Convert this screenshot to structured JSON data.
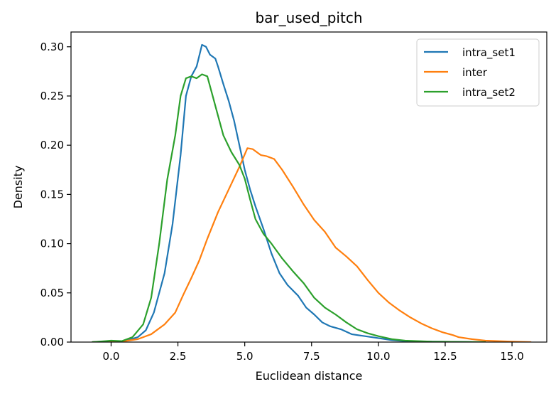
{
  "chart_data": {
    "type": "line",
    "title": "bar_used_pitch",
    "xlabel": "Euclidean distance",
    "ylabel": "Density",
    "xlim": [
      -1.5,
      16.3
    ],
    "ylim": [
      0,
      0.315
    ],
    "xticks": [
      0.0,
      2.5,
      5.0,
      7.5,
      10.0,
      12.5,
      15.0
    ],
    "xtick_labels": [
      "0.0",
      "2.5",
      "5.0",
      "7.5",
      "10.0",
      "12.5",
      "15.0"
    ],
    "yticks": [
      0.0,
      0.05,
      0.1,
      0.15,
      0.2,
      0.25,
      0.3
    ],
    "ytick_labels": [
      "0.00",
      "0.05",
      "0.10",
      "0.15",
      "0.20",
      "0.25",
      "0.30"
    ],
    "grid": false,
    "legend_position": "top-right",
    "series": [
      {
        "name": "intra_set1",
        "color": "#1f77b4",
        "points": [
          [
            -0.7,
            0.0
          ],
          [
            0.0,
            0.001
          ],
          [
            0.5,
            0.001
          ],
          [
            1.0,
            0.005
          ],
          [
            1.3,
            0.012
          ],
          [
            1.6,
            0.03
          ],
          [
            2.0,
            0.07
          ],
          [
            2.3,
            0.12
          ],
          [
            2.6,
            0.19
          ],
          [
            2.8,
            0.25
          ],
          [
            3.0,
            0.27
          ],
          [
            3.2,
            0.28
          ],
          [
            3.4,
            0.302
          ],
          [
            3.55,
            0.3
          ],
          [
            3.7,
            0.292
          ],
          [
            3.9,
            0.288
          ],
          [
            4.0,
            0.28
          ],
          [
            4.2,
            0.262
          ],
          [
            4.4,
            0.245
          ],
          [
            4.6,
            0.225
          ],
          [
            4.8,
            0.2
          ],
          [
            5.0,
            0.175
          ],
          [
            5.2,
            0.155
          ],
          [
            5.4,
            0.138
          ],
          [
            5.7,
            0.115
          ],
          [
            6.0,
            0.09
          ],
          [
            6.3,
            0.07
          ],
          [
            6.6,
            0.058
          ],
          [
            7.0,
            0.047
          ],
          [
            7.3,
            0.035
          ],
          [
            7.6,
            0.028
          ],
          [
            7.9,
            0.02
          ],
          [
            8.2,
            0.016
          ],
          [
            8.6,
            0.013
          ],
          [
            9.0,
            0.008
          ],
          [
            9.5,
            0.006
          ],
          [
            10.0,
            0.004
          ],
          [
            10.5,
            0.002
          ],
          [
            11.0,
            0.001
          ],
          [
            12.0,
            0.0005
          ],
          [
            13.0,
            0.0002
          ],
          [
            13.5,
            0.0
          ]
        ]
      },
      {
        "name": "inter",
        "color": "#ff7f0e",
        "points": [
          [
            -0.7,
            0.0
          ],
          [
            0.0,
            0.0
          ],
          [
            0.5,
            0.001
          ],
          [
            1.0,
            0.003
          ],
          [
            1.5,
            0.008
          ],
          [
            2.0,
            0.018
          ],
          [
            2.4,
            0.03
          ],
          [
            2.7,
            0.048
          ],
          [
            3.0,
            0.065
          ],
          [
            3.3,
            0.083
          ],
          [
            3.6,
            0.105
          ],
          [
            4.0,
            0.132
          ],
          [
            4.4,
            0.155
          ],
          [
            4.8,
            0.178
          ],
          [
            5.1,
            0.197
          ],
          [
            5.3,
            0.196
          ],
          [
            5.6,
            0.19
          ],
          [
            5.8,
            0.189
          ],
          [
            6.1,
            0.186
          ],
          [
            6.4,
            0.175
          ],
          [
            6.8,
            0.158
          ],
          [
            7.2,
            0.14
          ],
          [
            7.6,
            0.124
          ],
          [
            8.0,
            0.112
          ],
          [
            8.4,
            0.096
          ],
          [
            8.8,
            0.087
          ],
          [
            9.2,
            0.077
          ],
          [
            9.6,
            0.063
          ],
          [
            10.0,
            0.05
          ],
          [
            10.4,
            0.04
          ],
          [
            10.8,
            0.032
          ],
          [
            11.2,
            0.025
          ],
          [
            11.6,
            0.019
          ],
          [
            12.0,
            0.014
          ],
          [
            12.4,
            0.01
          ],
          [
            12.8,
            0.007
          ],
          [
            13.0,
            0.005
          ],
          [
            13.5,
            0.003
          ],
          [
            14.0,
            0.0015
          ],
          [
            15.0,
            0.0005
          ],
          [
            15.7,
            0.0
          ]
        ]
      },
      {
        "name": "intra_set2",
        "color": "#2ca02c",
        "points": [
          [
            -0.7,
            0.0
          ],
          [
            -0.2,
            0.001
          ],
          [
            0.0,
            0.0015
          ],
          [
            0.4,
            0.001
          ],
          [
            0.8,
            0.005
          ],
          [
            1.2,
            0.018
          ],
          [
            1.5,
            0.045
          ],
          [
            1.8,
            0.1
          ],
          [
            2.1,
            0.165
          ],
          [
            2.4,
            0.21
          ],
          [
            2.6,
            0.25
          ],
          [
            2.8,
            0.268
          ],
          [
            3.0,
            0.27
          ],
          [
            3.2,
            0.268
          ],
          [
            3.4,
            0.272
          ],
          [
            3.6,
            0.27
          ],
          [
            3.8,
            0.25
          ],
          [
            4.0,
            0.23
          ],
          [
            4.2,
            0.21
          ],
          [
            4.5,
            0.193
          ],
          [
            4.8,
            0.18
          ],
          [
            5.0,
            0.166
          ],
          [
            5.2,
            0.145
          ],
          [
            5.4,
            0.125
          ],
          [
            5.7,
            0.11
          ],
          [
            6.0,
            0.1
          ],
          [
            6.4,
            0.085
          ],
          [
            6.8,
            0.072
          ],
          [
            7.2,
            0.06
          ],
          [
            7.6,
            0.045
          ],
          [
            8.0,
            0.035
          ],
          [
            8.4,
            0.028
          ],
          [
            8.8,
            0.02
          ],
          [
            9.2,
            0.013
          ],
          [
            9.6,
            0.009
          ],
          [
            10.0,
            0.006
          ],
          [
            10.5,
            0.003
          ],
          [
            11.0,
            0.0015
          ],
          [
            12.0,
            0.0005
          ],
          [
            13.0,
            0.0002
          ],
          [
            14.0,
            0.0
          ]
        ]
      }
    ]
  }
}
